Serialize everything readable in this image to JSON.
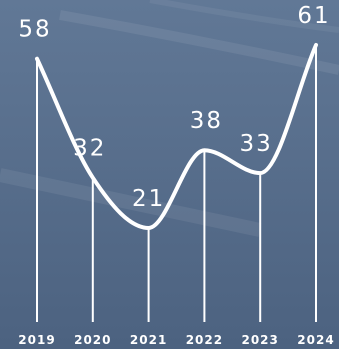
{
  "chart_data": {
    "type": "line",
    "title": "",
    "xlabel": "",
    "ylabel": "",
    "curve": "smooth",
    "grid": false,
    "legend": "none",
    "ylim": [
      0,
      65
    ],
    "categories": [
      "2019",
      "2020",
      "2021",
      "2022",
      "2023",
      "2024"
    ],
    "series": [
      {
        "values": [
          58,
          32,
          21,
          38,
          33,
          61
        ],
        "color": "#ffffff"
      }
    ],
    "data_labels": [
      "58",
      "32",
      "21",
      "38",
      "33",
      "61"
    ]
  },
  "colors": {
    "background": "#5a7191",
    "background_dark": "#4a5f7b",
    "line": "#ffffff",
    "text": "#ffffff"
  }
}
